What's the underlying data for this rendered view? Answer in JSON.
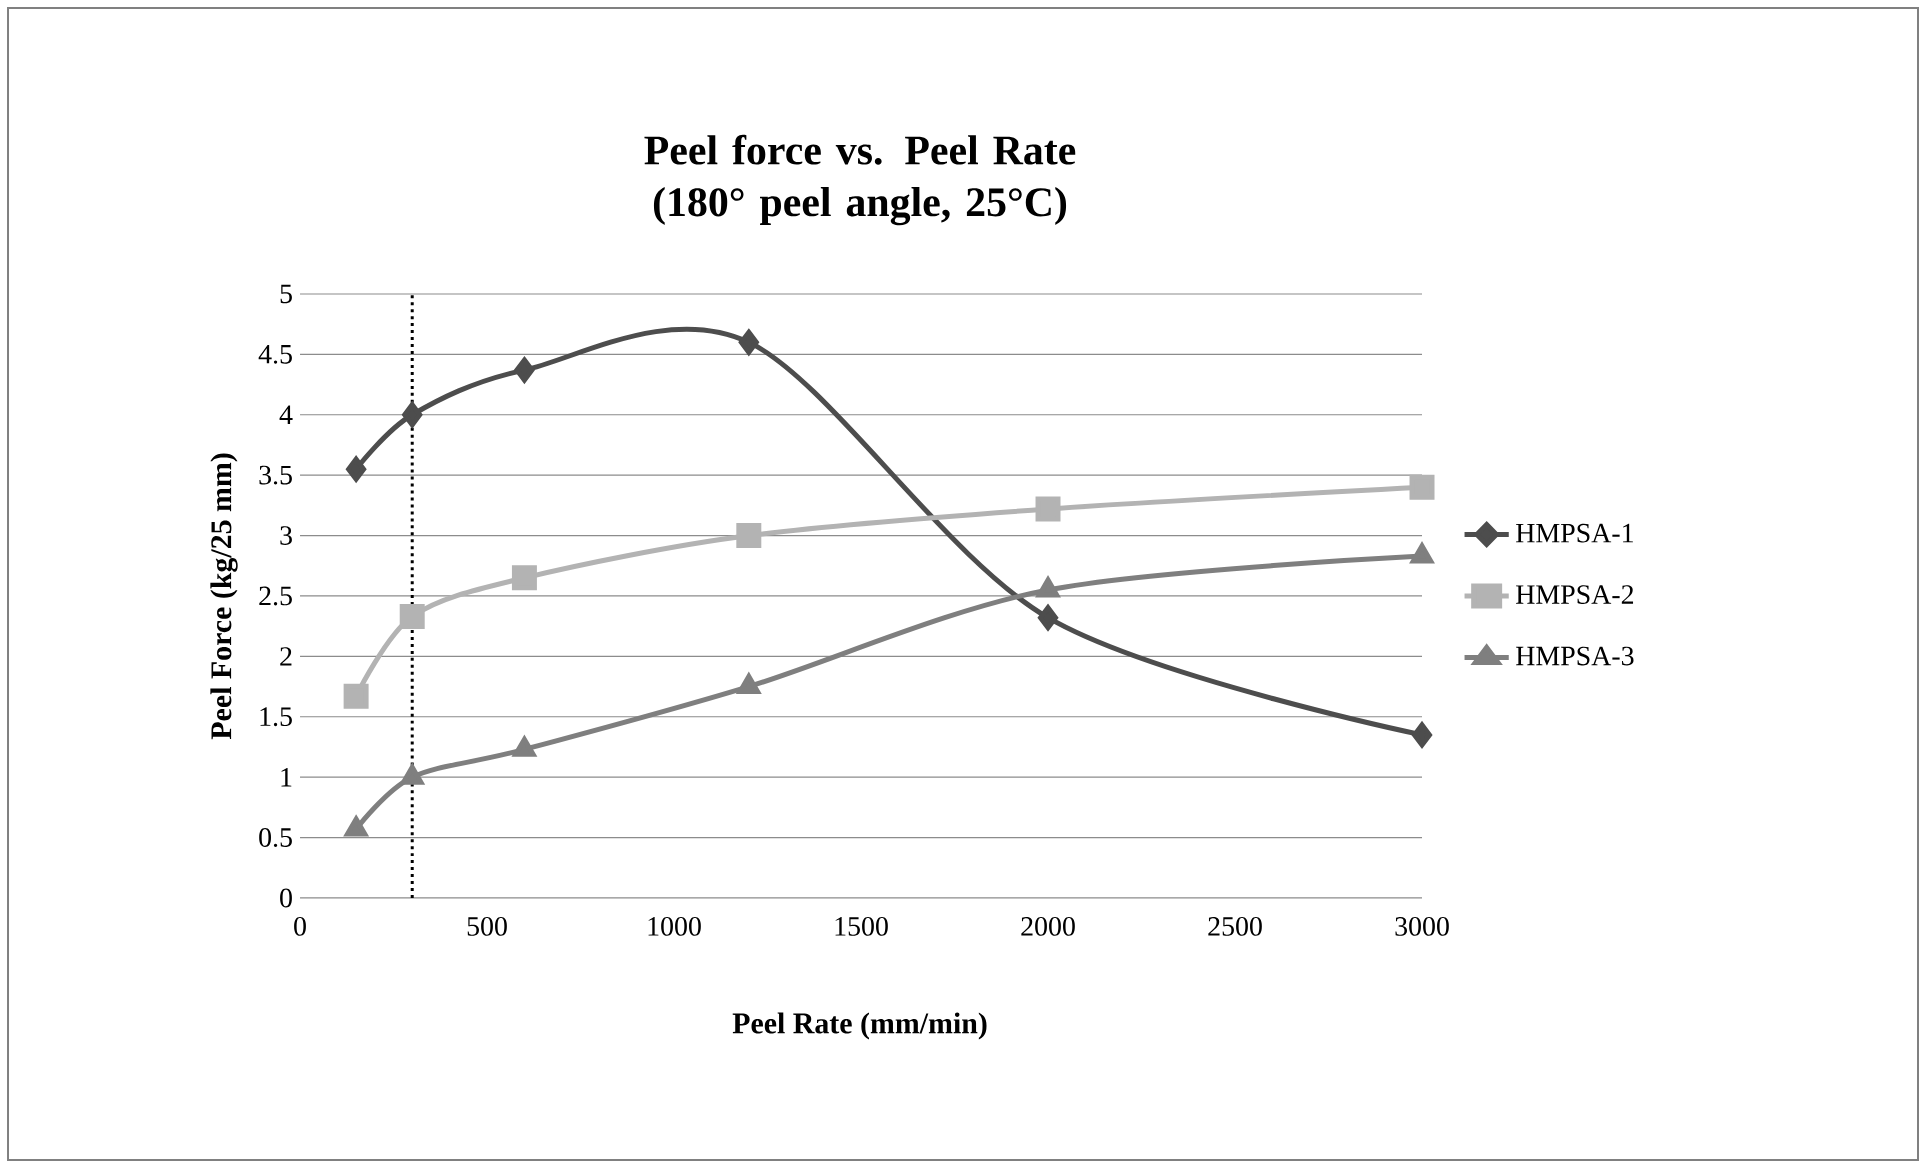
{
  "chart_data": {
    "type": "line",
    "title": "Peel force vs. Peel Rate (180° peel angle, 25°C)",
    "xlabel": "Peel Rate (mm/min)",
    "ylabel": "Peel Force (kg/25 mm)",
    "series": [
      {
        "name": "HMPSA-1",
        "color": "#4d4d4d",
        "marker": "diamond",
        "x": [
          150,
          300,
          600,
          1200,
          2000,
          3000
        ],
        "values": [
          3.55,
          4.0,
          4.37,
          4.6,
          2.32,
          1.35
        ]
      },
      {
        "name": "HMPSA-2",
        "color": "#b3b3b3",
        "marker": "square",
        "x": [
          150,
          300,
          600,
          1200,
          2000,
          3000
        ],
        "values": [
          1.67,
          2.33,
          2.65,
          3.0,
          3.22,
          3.4
        ]
      },
      {
        "name": "HMPSA-3",
        "color": "#7f7f7f",
        "marker": "triangle",
        "x": [
          150,
          300,
          600,
          1200,
          2000,
          3000
        ],
        "values": [
          0.57,
          1.0,
          1.23,
          1.75,
          2.55,
          2.83
        ]
      }
    ],
    "xlim": [
      0,
      3000
    ],
    "xticks": [
      0,
      500,
      1000,
      1500,
      2000,
      2500,
      3000
    ],
    "ylim": [
      0,
      5
    ],
    "yticks": [
      0,
      0.5,
      1,
      1.5,
      2,
      2.5,
      3,
      3.5,
      4,
      4.5,
      5
    ],
    "grid": "y",
    "legend": "right",
    "line_style": "solid",
    "ref_lines": [
      {
        "axis": "x",
        "value": 300,
        "color": "#000000",
        "line_style": "dotted"
      }
    ]
  }
}
